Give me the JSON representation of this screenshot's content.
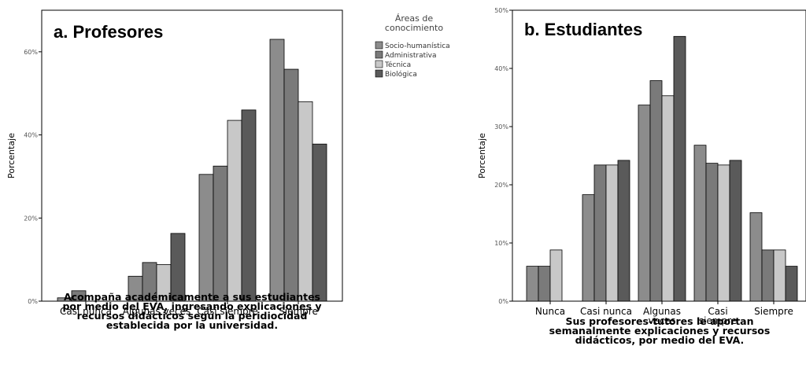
{
  "legend": {
    "title_lines": [
      "Áreas de",
      "conocimiento"
    ],
    "entries": [
      "Socio-humanística",
      "Administrativa",
      "Técnica",
      "Biológica"
    ],
    "colors": [
      "#8c8c8c",
      "#7a7a7a",
      "#c8c8c8",
      "#5a5a5a"
    ]
  },
  "chart_data": [
    {
      "type": "bar",
      "title": "a. Profesores",
      "ylabel": "Porcentaje",
      "xlabel_lines": [
        "Acompaña académicamente a sus estudiantes",
        "por medio del EVA, ingresando explicaciones y",
        "recursos didácticos según la peridiocidad",
        "establecida por la universidad."
      ],
      "categories": [
        [
          "Casi nunca"
        ],
        [
          "Algunas veces"
        ],
        [
          "Casi siempre"
        ],
        [
          "Siempre"
        ]
      ],
      "ylim": [
        0,
        70
      ],
      "yticks": [
        0,
        20,
        40,
        60
      ],
      "ytick_labels": [
        "0%",
        "20%",
        "40%",
        "60%"
      ],
      "series": [
        {
          "name": "Socio-humanística",
          "values": [
            0.8,
            6.0,
            30.5,
            63.0
          ]
        },
        {
          "name": "Administrativa",
          "values": [
            2.5,
            9.3,
            32.5,
            55.8
          ]
        },
        {
          "name": "Técnica",
          "values": [
            0,
            8.8,
            43.5,
            48.0
          ]
        },
        {
          "name": "Biológica",
          "values": [
            0,
            16.3,
            46.0,
            37.8
          ]
        }
      ]
    },
    {
      "type": "bar",
      "title": "b. Estudiantes",
      "ylabel": "Porcentaje",
      "xlabel_lines": [
        "Sus profesores-tutores le aportan",
        "semanalmente explicaciones y recursos",
        "didácticos, por medio del EVA."
      ],
      "categories": [
        [
          "Nunca"
        ],
        [
          "Casi nunca"
        ],
        [
          "Algunas",
          "veces"
        ],
        [
          "Casi",
          "siempre"
        ],
        [
          "Siempre"
        ]
      ],
      "ylim": [
        0,
        50
      ],
      "yticks": [
        0,
        10,
        20,
        30,
        40,
        50
      ],
      "ytick_labels": [
        "0%",
        "10%",
        "20%",
        "30%",
        "40%",
        "50%"
      ],
      "series": [
        {
          "name": "Socio-humanística",
          "values": [
            6.0,
            18.3,
            33.7,
            26.8,
            15.2
          ]
        },
        {
          "name": "Administrativa",
          "values": [
            6.0,
            23.4,
            37.9,
            23.7,
            8.8
          ]
        },
        {
          "name": "Técnica",
          "values": [
            8.8,
            23.4,
            35.3,
            23.4,
            8.8
          ]
        },
        {
          "name": "Biológica",
          "values": [
            0,
            24.2,
            45.5,
            24.2,
            6.0
          ]
        }
      ]
    }
  ]
}
